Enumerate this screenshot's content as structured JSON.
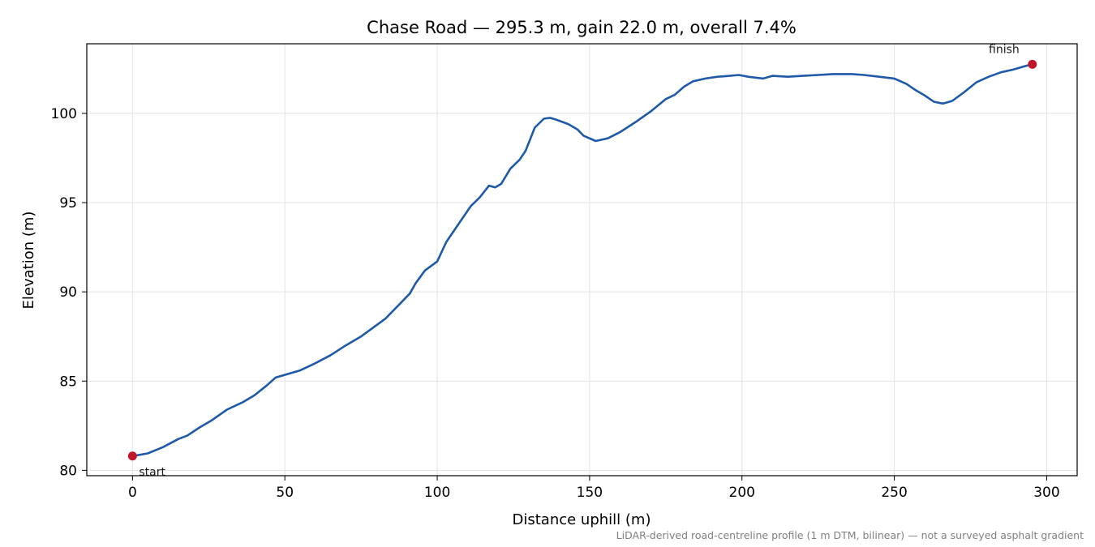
{
  "chart_data": {
    "type": "line",
    "title": "Chase Road — 295.3 m, gain 22.0 m, overall 7.4%",
    "xlabel": "Distance uphill (m)",
    "ylabel": "Elevation (m)",
    "footnote": "LiDAR-derived road-centreline profile (1 m DTM, bilinear) — not a surveyed asphalt gradient",
    "xlim": [
      -15,
      310
    ],
    "ylim": [
      79.7,
      103.9
    ],
    "xticks": [
      0,
      50,
      100,
      150,
      200,
      250,
      300
    ],
    "yticks": [
      80,
      85,
      90,
      95,
      100
    ],
    "xtick_labels": [
      "0",
      "50",
      "100",
      "150",
      "200",
      "250",
      "300"
    ],
    "ytick_labels": [
      "80",
      "85",
      "90",
      "95",
      "100"
    ],
    "grid": true,
    "line_color": "#1f5aa8",
    "marker_color": "#c0182a",
    "series": [
      {
        "points": [
          [
            0,
            80.8
          ],
          [
            5,
            80.95
          ],
          [
            10,
            81.3
          ],
          [
            15,
            81.75
          ],
          [
            18,
            81.95
          ],
          [
            22,
            82.4
          ],
          [
            26,
            82.8
          ],
          [
            31,
            83.4
          ],
          [
            36,
            83.8
          ],
          [
            40,
            84.2
          ],
          [
            44,
            84.75
          ],
          [
            47,
            85.2
          ],
          [
            52,
            85.45
          ],
          [
            55,
            85.6
          ],
          [
            60,
            86.0
          ],
          [
            65,
            86.45
          ],
          [
            70,
            87.0
          ],
          [
            75,
            87.5
          ],
          [
            79,
            88.0
          ],
          [
            83,
            88.5
          ],
          [
            87,
            89.2
          ],
          [
            91,
            89.9
          ],
          [
            93,
            90.5
          ],
          [
            96,
            91.2
          ],
          [
            100,
            91.7
          ],
          [
            103,
            92.8
          ],
          [
            107,
            93.8
          ],
          [
            111,
            94.8
          ],
          [
            114,
            95.3
          ],
          [
            117,
            95.95
          ],
          [
            119,
            95.85
          ],
          [
            121,
            96.05
          ],
          [
            124,
            96.9
          ],
          [
            127,
            97.4
          ],
          [
            129,
            97.9
          ],
          [
            132,
            99.2
          ],
          [
            135,
            99.7
          ],
          [
            137,
            99.75
          ],
          [
            139,
            99.65
          ],
          [
            143,
            99.4
          ],
          [
            146,
            99.1
          ],
          [
            148,
            98.75
          ],
          [
            152,
            98.45
          ],
          [
            156,
            98.6
          ],
          [
            160,
            98.95
          ],
          [
            165,
            99.5
          ],
          [
            170,
            100.1
          ],
          [
            175,
            100.8
          ],
          [
            178,
            101.05
          ],
          [
            181,
            101.5
          ],
          [
            184,
            101.8
          ],
          [
            188,
            101.95
          ],
          [
            192,
            102.05
          ],
          [
            196,
            102.1
          ],
          [
            199,
            102.15
          ],
          [
            202,
            102.05
          ],
          [
            207,
            101.95
          ],
          [
            210,
            102.1
          ],
          [
            215,
            102.05
          ],
          [
            220,
            102.1
          ],
          [
            225,
            102.15
          ],
          [
            230,
            102.2
          ],
          [
            236,
            102.2
          ],
          [
            240,
            102.15
          ],
          [
            245,
            102.05
          ],
          [
            250,
            101.95
          ],
          [
            254,
            101.65
          ],
          [
            257,
            101.3
          ],
          [
            260,
            101.0
          ],
          [
            263,
            100.65
          ],
          [
            266,
            100.55
          ],
          [
            269,
            100.7
          ],
          [
            273,
            101.2
          ],
          [
            277,
            101.75
          ],
          [
            281,
            102.05
          ],
          [
            285,
            102.3
          ],
          [
            289,
            102.45
          ],
          [
            293,
            102.65
          ],
          [
            295.3,
            102.75
          ]
        ]
      }
    ],
    "markers": [
      {
        "x": 0,
        "y": 80.8,
        "label": "start"
      },
      {
        "x": 295.3,
        "y": 102.75,
        "label": "finish"
      }
    ]
  }
}
